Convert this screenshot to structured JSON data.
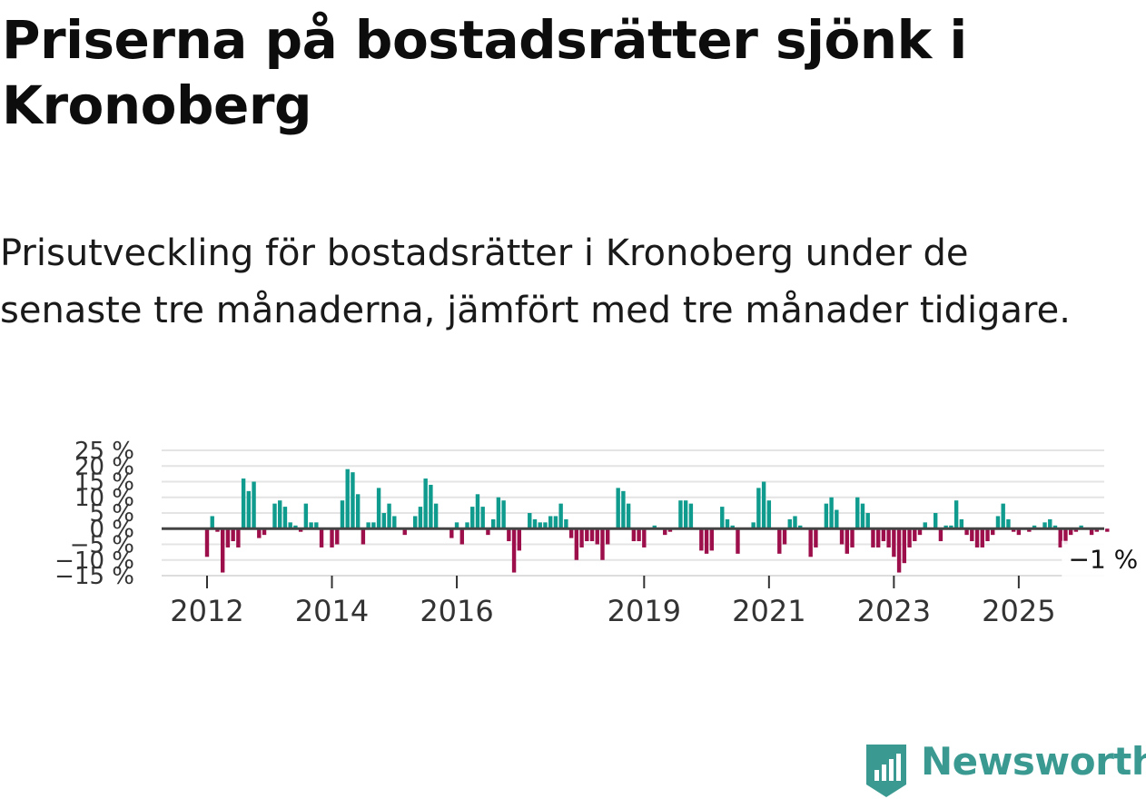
{
  "title": "Priserna på bostadsrätter sjönk i Kronoberg",
  "subtitle": "Prisutveckling för bostadsrätter i Kronoberg under de senaste tre månaderna, jämfört med tre månader tidigare.",
  "brand": {
    "name": "Newsworthy",
    "icon": "newsworthy-logo-icon"
  },
  "colors": {
    "positive": "#0f9b8e",
    "negative": "#9c0f4b",
    "zero_line": "#444444",
    "grid": "#e4e4e4",
    "brand": "#3a9a92"
  },
  "chart_data": {
    "type": "bar",
    "title": "",
    "xlabel": "",
    "ylabel": "",
    "unit": "%",
    "ylim": [
      -15,
      25
    ],
    "y_ticks": [
      {
        "value": 25,
        "label": "25 %"
      },
      {
        "value": 20,
        "label": "20 %"
      },
      {
        "value": 15,
        "label": "15 %"
      },
      {
        "value": 10,
        "label": "10 %"
      },
      {
        "value": 5,
        "label": "5 %"
      },
      {
        "value": 0,
        "label": "0 %"
      },
      {
        "value": -5,
        "label": "−5 %"
      },
      {
        "value": -10,
        "label": "−10 %"
      },
      {
        "value": -15,
        "label": "−15 %"
      }
    ],
    "x_ticks": [
      {
        "index": 0,
        "label": "2012"
      },
      {
        "index": 24,
        "label": "2014"
      },
      {
        "index": 48,
        "label": "2016"
      },
      {
        "index": 84,
        "label": "2019"
      },
      {
        "index": 108,
        "label": "2021"
      },
      {
        "index": 132,
        "label": "2023"
      },
      {
        "index": 156,
        "label": "2025"
      }
    ],
    "start": "2012-01",
    "values": [
      -9,
      4,
      -1,
      -14,
      -6,
      -4,
      -6,
      16,
      12,
      15,
      -3,
      -2,
      0,
      8,
      9,
      7,
      2,
      1,
      -1,
      8,
      2,
      2,
      -6,
      0,
      -6,
      -5,
      9,
      19,
      18,
      11,
      -5,
      2,
      2,
      13,
      5,
      8,
      4,
      0,
      -2,
      0,
      4,
      7,
      16,
      14,
      8,
      0,
      0,
      -3,
      2,
      -5,
      2,
      7,
      11,
      7,
      -2,
      3,
      10,
      9,
      -4,
      -14,
      -7,
      0,
      5,
      3,
      2,
      2,
      4,
      4,
      8,
      3,
      -3,
      -10,
      -6,
      -4,
      -4,
      -5,
      -10,
      -5,
      0,
      13,
      12,
      8,
      -4,
      -4,
      -6,
      0,
      1,
      0,
      -2,
      -1,
      0,
      9,
      9,
      8,
      0,
      -7,
      -8,
      -7,
      0,
      7,
      3,
      1,
      -8,
      0,
      0,
      2,
      13,
      15,
      9,
      0,
      -8,
      -5,
      3,
      4,
      1,
      0,
      -9,
      -6,
      0,
      8,
      10,
      6,
      -5,
      -8,
      -6,
      10,
      8,
      5,
      -6,
      -6,
      -4,
      -6,
      -9,
      -14,
      -11,
      -6,
      -4,
      -2,
      2,
      0,
      5,
      -4,
      1,
      1,
      9,
      3,
      -2,
      -4,
      -6,
      -6,
      -4,
      -2,
      4,
      8,
      3,
      -1,
      -2,
      0,
      -1,
      1,
      0,
      2,
      3,
      1,
      -6,
      -5,
      -2,
      -1,
      1,
      0,
      -2,
      -1,
      0,
      -1
    ],
    "last_label": "−1 %"
  }
}
